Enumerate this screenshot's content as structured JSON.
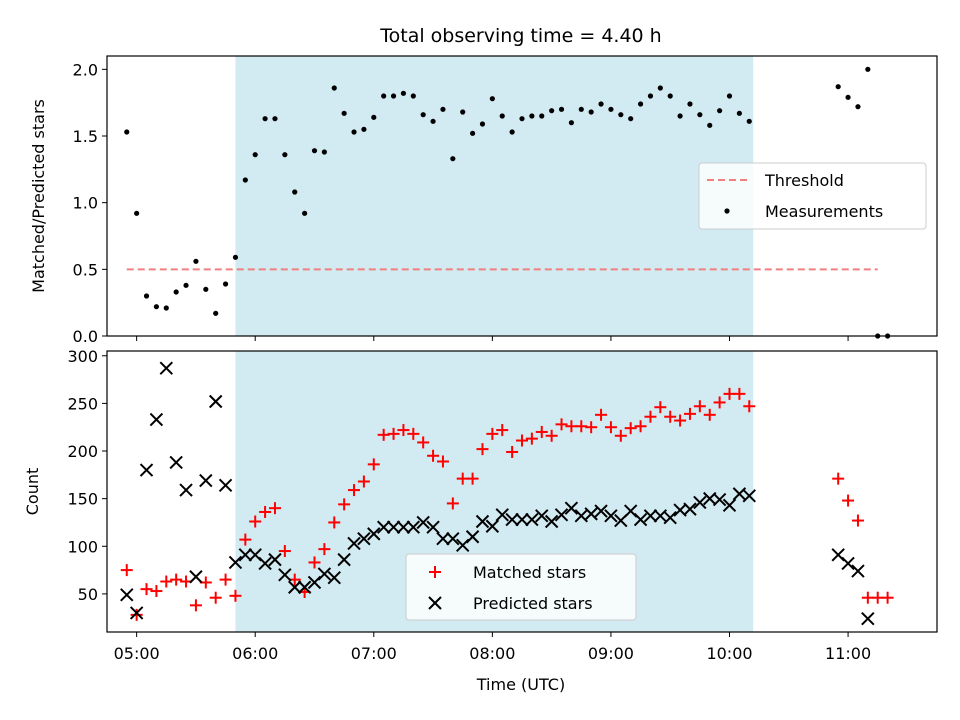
{
  "title": "Total observing time = 4.40 h",
  "xlabel": "Time (UTC)",
  "x_ticks": [
    "05:00",
    "06:00",
    "07:00",
    "08:00",
    "09:00",
    "10:00",
    "11:00"
  ],
  "colors": {
    "shade": "#add8e6",
    "threshold": "#f08080",
    "measurement": "#000000",
    "matched": "#ff0000",
    "predicted": "#000000"
  },
  "chart_data": [
    {
      "type": "scatter",
      "ylabel": "Matched/Predicted stars",
      "x_range": [
        "04:45",
        "11:45"
      ],
      "ylim": [
        0,
        2.1
      ],
      "y_ticks": [
        "0.0",
        "0.5",
        "1.0",
        "1.5",
        "2.0"
      ],
      "legend_position": "center-right",
      "legend": [
        "Threshold",
        "Measurements"
      ],
      "shaded_interval": [
        "05:50",
        "10:12"
      ],
      "threshold": {
        "value": 0.5,
        "x_start": "04:55",
        "x_end": "11:15"
      },
      "series": [
        {
          "name": "Measurements",
          "x": [
            "04:55",
            "05:00",
            "05:05",
            "05:10",
            "05:15",
            "05:20",
            "05:25",
            "05:30",
            "05:35",
            "05:40",
            "05:45",
            "05:50",
            "05:55",
            "06:00",
            "06:05",
            "06:10",
            "06:15",
            "06:20",
            "06:25",
            "06:30",
            "06:35",
            "06:40",
            "06:45",
            "06:50",
            "06:55",
            "07:00",
            "07:05",
            "07:10",
            "07:15",
            "07:20",
            "07:25",
            "07:30",
            "07:35",
            "07:40",
            "07:45",
            "07:50",
            "07:55",
            "08:00",
            "08:05",
            "08:10",
            "08:15",
            "08:20",
            "08:25",
            "08:30",
            "08:35",
            "08:40",
            "08:45",
            "08:50",
            "08:55",
            "09:00",
            "09:05",
            "09:10",
            "09:15",
            "09:20",
            "09:25",
            "09:30",
            "09:35",
            "09:40",
            "09:45",
            "09:50",
            "09:55",
            "10:00",
            "10:05",
            "10:10",
            "10:55",
            "11:00",
            "11:05",
            "11:10",
            "11:15",
            "11:20"
          ],
          "y": [
            1.53,
            0.92,
            0.3,
            0.22,
            0.21,
            0.33,
            0.38,
            0.56,
            0.35,
            0.17,
            0.39,
            0.59,
            1.17,
            1.36,
            1.63,
            1.63,
            1.36,
            1.08,
            0.92,
            1.39,
            1.38,
            1.86,
            1.67,
            1.53,
            1.55,
            1.64,
            1.8,
            1.8,
            1.82,
            1.8,
            1.66,
            1.61,
            1.7,
            1.33,
            1.68,
            1.52,
            1.59,
            1.78,
            1.65,
            1.53,
            1.63,
            1.65,
            1.65,
            1.69,
            1.7,
            1.6,
            1.7,
            1.68,
            1.74,
            1.7,
            1.66,
            1.63,
            1.74,
            1.8,
            1.86,
            1.8,
            1.65,
            1.74,
            1.66,
            1.58,
            1.69,
            1.8,
            1.67,
            1.61,
            1.87,
            1.79,
            1.72,
            2.0,
            0.0,
            0.0
          ]
        }
      ]
    },
    {
      "type": "scatter",
      "ylabel": "Count",
      "x_range": [
        "04:45",
        "11:45"
      ],
      "ylim": [
        10,
        305
      ],
      "y_ticks": [
        "50",
        "100",
        "150",
        "200",
        "250",
        "300"
      ],
      "legend_position": "bottom-center",
      "legend": [
        "Matched stars",
        "Predicted stars"
      ],
      "shaded_interval": [
        "05:50",
        "10:12"
      ],
      "series": [
        {
          "name": "Matched stars",
          "x": [
            "04:55",
            "05:00",
            "05:05",
            "05:10",
            "05:15",
            "05:20",
            "05:25",
            "05:30",
            "05:35",
            "05:40",
            "05:45",
            "05:50",
            "05:55",
            "06:00",
            "06:05",
            "06:10",
            "06:15",
            "06:20",
            "06:25",
            "06:30",
            "06:35",
            "06:40",
            "06:45",
            "06:50",
            "06:55",
            "07:00",
            "07:05",
            "07:10",
            "07:15",
            "07:20",
            "07:25",
            "07:30",
            "07:35",
            "07:40",
            "07:45",
            "07:50",
            "07:55",
            "08:00",
            "08:05",
            "08:10",
            "08:15",
            "08:20",
            "08:25",
            "08:30",
            "08:35",
            "08:40",
            "08:45",
            "08:50",
            "08:55",
            "09:00",
            "09:05",
            "09:10",
            "09:15",
            "09:20",
            "09:25",
            "09:30",
            "09:35",
            "09:40",
            "09:45",
            "09:50",
            "09:55",
            "10:00",
            "10:05",
            "10:10",
            "10:55",
            "11:00",
            "11:05",
            "11:10",
            "11:15",
            "11:20"
          ],
          "y": [
            75,
            28,
            55,
            53,
            63,
            65,
            63,
            38,
            62,
            46,
            65,
            48,
            107,
            126,
            136,
            140,
            95,
            65,
            52,
            83,
            97,
            125,
            144,
            159,
            168,
            186,
            217,
            218,
            222,
            218,
            209,
            195,
            189,
            145,
            171,
            171,
            202,
            218,
            222,
            199,
            211,
            213,
            220,
            216,
            228,
            226,
            226,
            225,
            238,
            225,
            216,
            224,
            226,
            236,
            246,
            236,
            232,
            239,
            247,
            238,
            251,
            260,
            260,
            247,
            171,
            148,
            127,
            46,
            46,
            46
          ]
        },
        {
          "name": "Predicted stars",
          "x": [
            "04:55",
            "05:00",
            "05:05",
            "05:10",
            "05:15",
            "05:20",
            "05:25",
            "05:30",
            "05:35",
            "05:40",
            "05:45",
            "05:50",
            "05:55",
            "06:00",
            "06:05",
            "06:10",
            "06:15",
            "06:20",
            "06:25",
            "06:30",
            "06:35",
            "06:40",
            "06:45",
            "06:50",
            "06:55",
            "07:00",
            "07:05",
            "07:10",
            "07:15",
            "07:20",
            "07:25",
            "07:30",
            "07:35",
            "07:40",
            "07:45",
            "07:50",
            "07:55",
            "08:00",
            "08:05",
            "08:10",
            "08:15",
            "08:20",
            "08:25",
            "08:30",
            "08:35",
            "08:40",
            "08:45",
            "08:50",
            "08:55",
            "09:00",
            "09:05",
            "09:10",
            "09:15",
            "09:20",
            "09:25",
            "09:30",
            "09:35",
            "09:40",
            "09:45",
            "09:50",
            "09:55",
            "10:00",
            "10:05",
            "10:10",
            "10:55",
            "11:00",
            "11:05",
            "11:10"
          ],
          "y": [
            49,
            30,
            180,
            233,
            287,
            188,
            159,
            68,
            169,
            252,
            164,
            83,
            91,
            91,
            82,
            86,
            70,
            57,
            57,
            62,
            71,
            67,
            86,
            103,
            108,
            113,
            120,
            120,
            120,
            120,
            125,
            120,
            108,
            108,
            101,
            110,
            126,
            121,
            133,
            128,
            128,
            128,
            132,
            126,
            133,
            140,
            132,
            134,
            137,
            132,
            127,
            137,
            128,
            132,
            132,
            130,
            138,
            139,
            146,
            150,
            149,
            143,
            155,
            153,
            91,
            82,
            74,
            24
          ]
        }
      ]
    }
  ]
}
